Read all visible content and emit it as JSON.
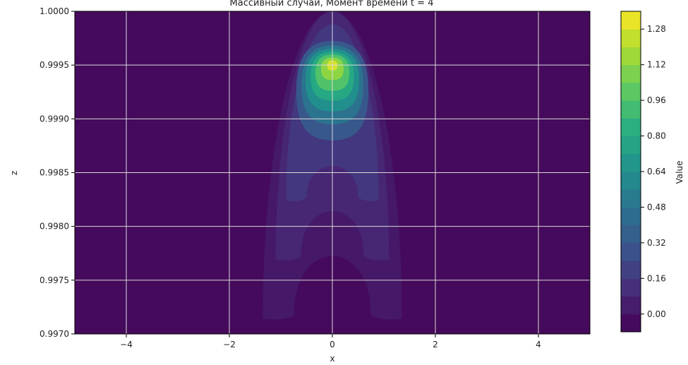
{
  "chart_data": {
    "type": "heatmap",
    "title": "Массивный случай, Момент времени t = 4",
    "xlabel": "x",
    "ylabel": "z",
    "xlim": [
      -5,
      5
    ],
    "ylim": [
      0.997,
      1.0
    ],
    "x_ticks": [
      "−4",
      "−2",
      "0",
      "2",
      "4"
    ],
    "x_tick_values": [
      -4,
      -2,
      0,
      2,
      4
    ],
    "y_ticks": [
      "0.9970",
      "0.9975",
      "0.9980",
      "0.9985",
      "0.9990",
      "0.9995",
      "1.0000"
    ],
    "y_tick_values": [
      0.997,
      0.9975,
      0.998,
      0.9985,
      0.999,
      0.9995,
      1.0
    ],
    "grid": true,
    "colormap": "viridis",
    "colorbar": {
      "label": "Value",
      "range": [
        -0.08,
        1.36
      ],
      "ticks": [
        "0.00",
        "0.16",
        "0.32",
        "0.48",
        "0.64",
        "0.80",
        "0.96",
        "1.12",
        "1.28"
      ],
      "tick_values": [
        0.0,
        0.16,
        0.32,
        0.48,
        0.64,
        0.8,
        0.96,
        1.12,
        1.28
      ]
    },
    "peak": {
      "x": 0,
      "z": 0.9995,
      "value": 1.32
    },
    "levels": [
      {
        "level": 0.02,
        "x_halfwidth_at_base": 1.35,
        "z_bottom": 0.99715
      },
      {
        "level": 0.08,
        "x_halfwidth_at_base": 1.1,
        "z_bottom": 0.9977
      },
      {
        "level": 0.16,
        "x_halfwidth_at_base": 0.9,
        "z_bottom": 0.99825
      },
      {
        "level": 0.32,
        "x_halfwidth_at_base": 0.7,
        "z_bottom": 0.9988
      },
      {
        "level": 0.48,
        "x_halfwidth_at_base": 0.6,
        "z_bottom": 0.99895
      },
      {
        "level": 0.64,
        "x_halfwidth_at_base": 0.52,
        "z_bottom": 0.99907
      },
      {
        "level": 0.8,
        "x_halfwidth_at_base": 0.42,
        "z_bottom": 0.99917
      },
      {
        "level": 0.96,
        "x_halfwidth_at_base": 0.33,
        "z_bottom": 0.99926
      },
      {
        "level": 1.12,
        "x_halfwidth_at_base": 0.22,
        "z_bottom": 0.99936
      },
      {
        "level": 1.28,
        "x_halfwidth_at_base": 0.1,
        "z_bottom": 0.99945
      }
    ]
  }
}
